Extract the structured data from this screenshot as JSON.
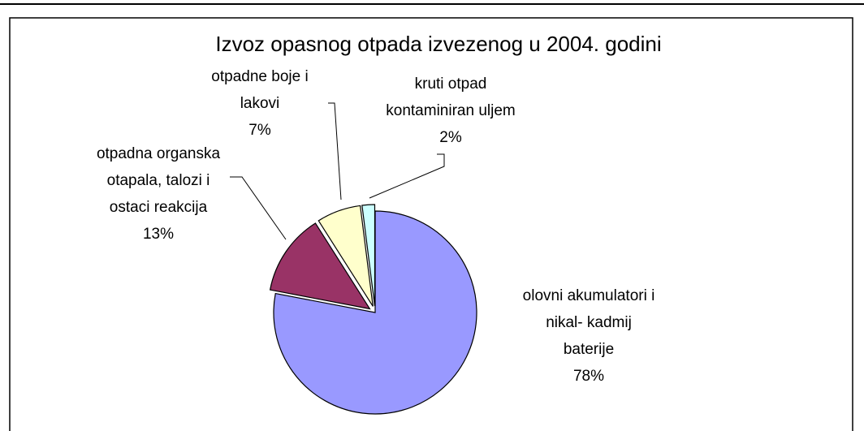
{
  "chart_data": {
    "type": "pie",
    "title": "Izvoz opasnog otpada izvezenog u 2004. godini",
    "categories": [
      "olovni akumulatori i\nnikal- kadmij\nbaterije",
      "otpadna organska\notapala, talozi i\nostaci reakcija",
      "otpadne boje i\nlakovi",
      "kruti otpad\nkontaminiran uljem"
    ],
    "values": [
      78,
      13,
      7,
      2
    ],
    "value_labels": [
      "78%",
      "13%",
      "7%",
      "2%"
    ],
    "colors": [
      "#9999ff",
      "#993366",
      "#ffffcc",
      "#ccffff"
    ]
  }
}
